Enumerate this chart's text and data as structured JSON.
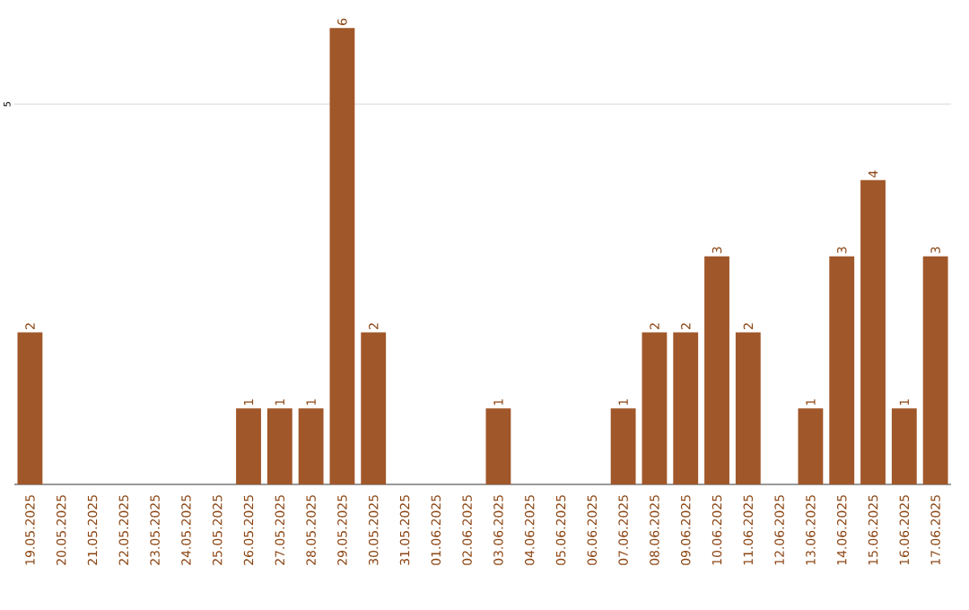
{
  "chart_data": {
    "type": "bar",
    "categories": [
      "19.05.2025",
      "20.05.2025",
      "21.05.2025",
      "22.05.2025",
      "23.05.2025",
      "24.05.2025",
      "25.05.2025",
      "26.05.2025",
      "27.05.2025",
      "28.05.2025",
      "29.05.2025",
      "30.05.2025",
      "31.05.2025",
      "01.06.2025",
      "02.06.2025",
      "03.06.2025",
      "04.06.2025",
      "05.06.2025",
      "06.06.2025",
      "07.06.2025",
      "08.06.2025",
      "09.06.2025",
      "10.06.2025",
      "11.06.2025",
      "12.06.2025",
      "13.06.2025",
      "14.06.2025",
      "15.06.2025",
      "16.06.2025",
      "17.06.2025"
    ],
    "values": [
      2,
      0,
      0,
      0,
      0,
      0,
      0,
      1,
      1,
      1,
      6,
      2,
      0,
      0,
      0,
      1,
      0,
      0,
      0,
      1,
      2,
      2,
      3,
      2,
      0,
      1,
      3,
      4,
      1,
      3
    ],
    "value_labels": [
      "2",
      null,
      null,
      null,
      null,
      null,
      null,
      "1",
      "1",
      "1",
      "6",
      "2",
      null,
      null,
      null,
      "1",
      null,
      null,
      null,
      "1",
      "2",
      "2",
      "3",
      "2",
      null,
      "1",
      "3",
      "4",
      "1",
      "3"
    ],
    "color": "#a0572a",
    "ref_lines": [
      {
        "axis": "y",
        "value": 5,
        "label": "5",
        "color": "#cccccc"
      }
    ]
  }
}
